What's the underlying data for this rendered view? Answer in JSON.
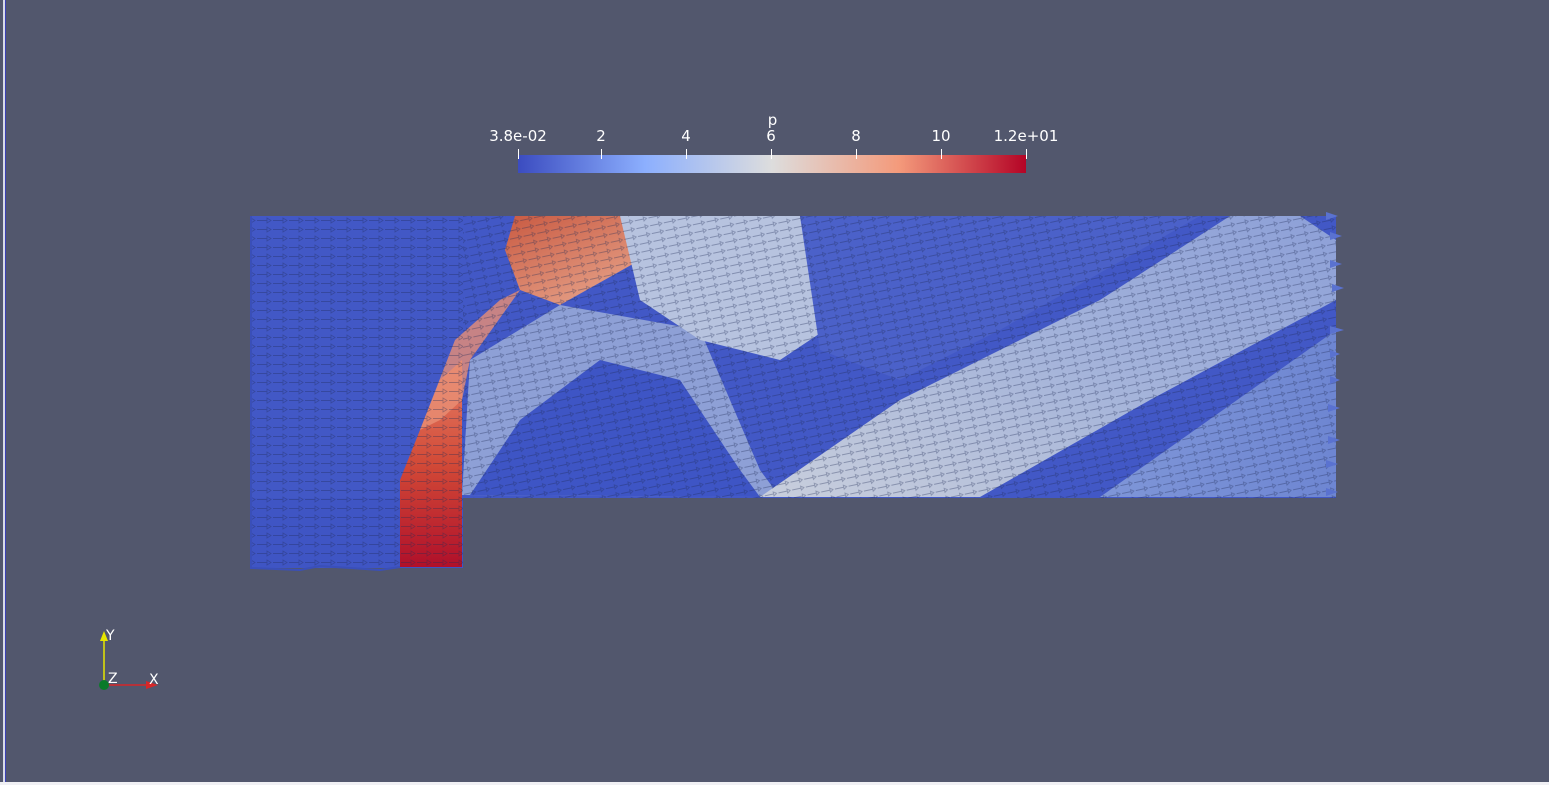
{
  "view": {
    "background": "#52576d"
  },
  "colorbar": {
    "title": "p",
    "labels": [
      "3.8e-02",
      "2",
      "4",
      "6",
      "8",
      "10",
      "1.2e+01"
    ],
    "range": [
      0.038,
      12
    ],
    "colormap": "cool-warm",
    "colors": {
      "low": "#3b4cc0",
      "mid": "#dddddd",
      "high": "#b40426"
    }
  },
  "orientation_axes": {
    "x_label": "X",
    "y_label": "Y",
    "z_label": "Z",
    "x_color": "#d62728",
    "y_color": "#e6e600",
    "z_color": "#0a7a2a"
  },
  "glyphs": {
    "type": "arrow-icon",
    "field": "p"
  }
}
